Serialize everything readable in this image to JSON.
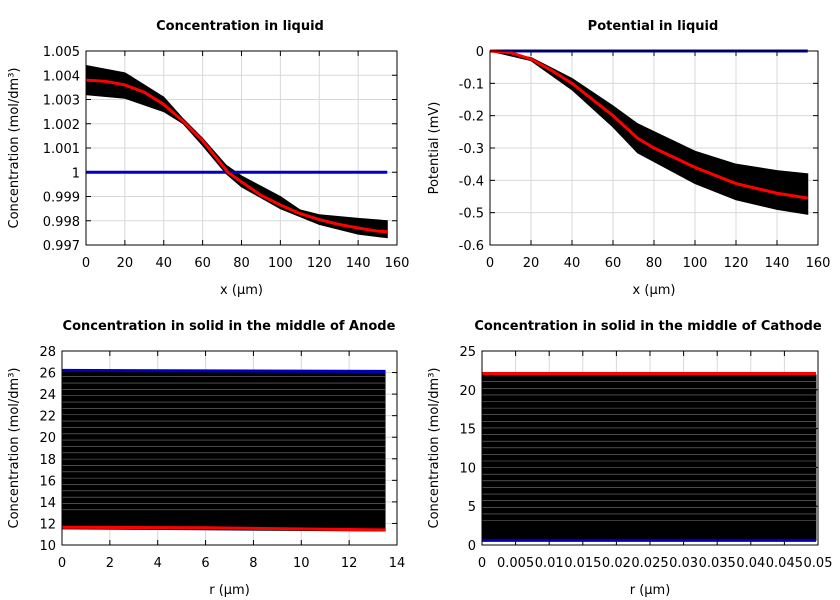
{
  "chart_data": [
    {
      "type": "line",
      "title": "Concentration in liquid",
      "xlabel": "x (µm)",
      "ylabel": "Concentration (mol/dm³)",
      "xlim": [
        0,
        160
      ],
      "ylim": [
        0.997,
        1.005
      ],
      "xticks": [
        "0",
        "20",
        "40",
        "60",
        "80",
        "100",
        "120",
        "140",
        "160"
      ],
      "yticks": [
        "0.997",
        "0.998",
        "0.999",
        "1",
        "1.001",
        "1.002",
        "1.003",
        "1.004",
        "1.005"
      ],
      "grid": true,
      "band": {
        "color": "#000000",
        "upper": [
          [
            0,
            1.0044
          ],
          [
            20,
            1.0041
          ],
          [
            40,
            1.0031
          ],
          [
            50,
            1.0022
          ],
          [
            60,
            1.0014
          ],
          [
            72,
            1.0003
          ],
          [
            80,
            0.99985
          ],
          [
            100,
            0.999
          ],
          [
            110,
            0.99845
          ],
          [
            120,
            0.99825
          ],
          [
            140,
            0.9981
          ],
          [
            155,
            0.998
          ]
        ],
        "lower": [
          [
            0,
            1.0032
          ],
          [
            20,
            1.00305
          ],
          [
            40,
            1.0025
          ],
          [
            50,
            1.002
          ],
          [
            60,
            1.0011
          ],
          [
            72,
            0.99995
          ],
          [
            80,
            0.9994
          ],
          [
            100,
            0.9985
          ],
          [
            120,
            0.99785
          ],
          [
            140,
            0.99745
          ],
          [
            155,
            0.9973
          ]
        ]
      },
      "series": [
        {
          "color": "#0000bb",
          "points": [
            [
              0,
              1.0
            ],
            [
              155,
              1.0
            ]
          ]
        },
        {
          "color": "#ff0000",
          "points": [
            [
              0,
              1.0038
            ],
            [
              10,
              1.00375
            ],
            [
              20,
              1.0036
            ],
            [
              30,
              1.0033
            ],
            [
              40,
              1.0028
            ],
            [
              50,
              1.0021
            ],
            [
              60,
              1.0013
            ],
            [
              70,
              1.0003
            ],
            [
              73,
              1.0
            ],
            [
              80,
              0.9996
            ],
            [
              90,
              0.99905
            ],
            [
              100,
              0.99865
            ],
            [
              110,
              0.9983
            ],
            [
              120,
              0.99805
            ],
            [
              130,
              0.99785
            ],
            [
              140,
              0.9977
            ],
            [
              150,
              0.99757
            ],
            [
              155,
              0.99755
            ]
          ]
        }
      ]
    },
    {
      "type": "line",
      "title": "Potential in liquid",
      "xlabel": "x (µm)",
      "ylabel": "Potential (mV)",
      "xlim": [
        0,
        160
      ],
      "ylim": [
        -0.6,
        0
      ],
      "xticks": [
        "0",
        "20",
        "40",
        "60",
        "80",
        "100",
        "120",
        "140",
        "160"
      ],
      "yticks": [
        "-0.6",
        "-0.5",
        "-0.4",
        "-0.3",
        "-0.2",
        "-0.1",
        "0"
      ],
      "grid": true,
      "band": {
        "color": "#000000",
        "upper": [
          [
            0,
            0
          ],
          [
            20,
            -0.02
          ],
          [
            40,
            -0.085
          ],
          [
            60,
            -0.17
          ],
          [
            72,
            -0.225
          ],
          [
            100,
            -0.31
          ],
          [
            120,
            -0.35
          ],
          [
            140,
            -0.37
          ],
          [
            155,
            -0.38
          ]
        ],
        "lower": [
          [
            0,
            0
          ],
          [
            20,
            -0.03
          ],
          [
            40,
            -0.12
          ],
          [
            60,
            -0.235
          ],
          [
            72,
            -0.315
          ],
          [
            100,
            -0.41
          ],
          [
            120,
            -0.46
          ],
          [
            140,
            -0.49
          ],
          [
            155,
            -0.505
          ]
        ]
      },
      "series": [
        {
          "color": "#0000bb",
          "points": [
            [
              0,
              0
            ],
            [
              155,
              0
            ]
          ]
        },
        {
          "color": "#ff0000",
          "points": [
            [
              0,
              0
            ],
            [
              10,
              -0.005
            ],
            [
              20,
              -0.025
            ],
            [
              30,
              -0.06
            ],
            [
              40,
              -0.1
            ],
            [
              50,
              -0.15
            ],
            [
              60,
              -0.2
            ],
            [
              72,
              -0.27
            ],
            [
              80,
              -0.3
            ],
            [
              100,
              -0.36
            ],
            [
              120,
              -0.41
            ],
            [
              140,
              -0.44
            ],
            [
              155,
              -0.455
            ]
          ]
        }
      ]
    },
    {
      "type": "line",
      "title": "Concentration in solid in the middle of Anode",
      "xlabel": "r (µm)",
      "ylabel": "Concentration (mol/dm³)",
      "xlim": [
        0,
        14
      ],
      "ylim": [
        10,
        28
      ],
      "xticks": [
        "0",
        "2",
        "4",
        "6",
        "8",
        "10",
        "12",
        "14"
      ],
      "yticks": [
        "10",
        "12",
        "14",
        "16",
        "18",
        "20",
        "22",
        "24",
        "26",
        "28"
      ],
      "grid": true,
      "band": {
        "color": "#000000",
        "upper": [
          [
            0,
            26.2
          ],
          [
            13.5,
            26.2
          ]
        ],
        "lower": [
          [
            0,
            11.5
          ],
          [
            13.5,
            11.3
          ]
        ]
      },
      "series": [
        {
          "color": "#0000bb",
          "points": [
            [
              0,
              26.2
            ],
            [
              13.5,
              26.1
            ]
          ]
        },
        {
          "color": "#ff0000",
          "points": [
            [
              0,
              11.65
            ],
            [
              6,
              11.6
            ],
            [
              13.5,
              11.4
            ]
          ]
        }
      ]
    },
    {
      "type": "line",
      "title": "Concentration in solid in the middle of Cathode",
      "xlabel": "r (µm)",
      "ylabel": "Concentration (mol/dm³)",
      "xlim": [
        0,
        0.05
      ],
      "ylim": [
        0,
        25
      ],
      "xticks": [
        "0",
        "0.005",
        "0.01",
        "0.015",
        "0.02",
        "0.025",
        "0.03",
        "0.035",
        "0.04",
        "0.045",
        "0.05"
      ],
      "yticks": [
        "0",
        "5",
        "10",
        "15",
        "20",
        "25"
      ],
      "grid": true,
      "band": {
        "color": "#000000",
        "upper": [
          [
            0,
            21.9
          ],
          [
            0.0497,
            21.9
          ]
        ],
        "lower": [
          [
            0,
            0.6
          ],
          [
            0.0497,
            0.6
          ]
        ]
      },
      "series": [
        {
          "color": "#0000bb",
          "points": [
            [
              0,
              0.6
            ],
            [
              0.0497,
              0.6
            ]
          ]
        },
        {
          "color": "#ff0000",
          "points": [
            [
              0,
              22.1
            ],
            [
              0.0497,
              22.1
            ]
          ]
        }
      ]
    }
  ]
}
